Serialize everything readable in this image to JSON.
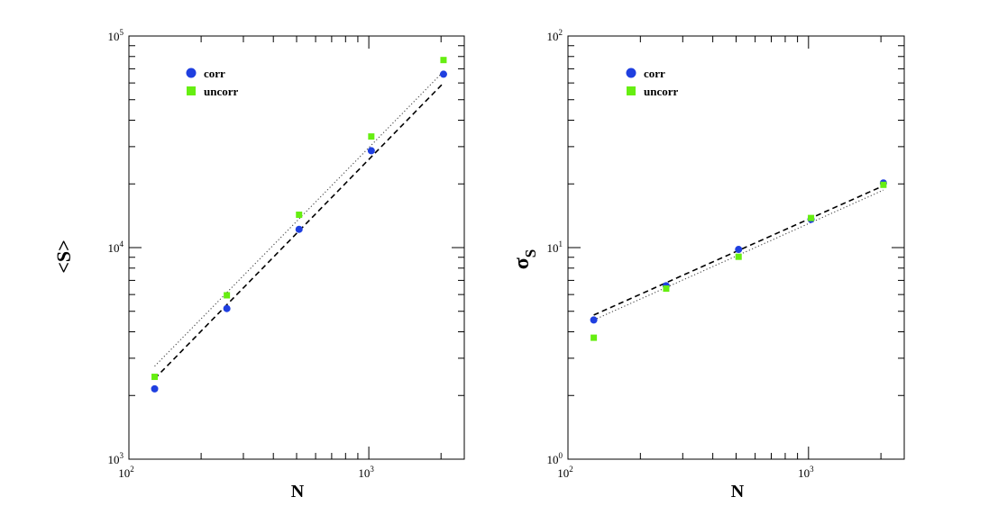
{
  "chart_data": [
    {
      "type": "scatter",
      "xlabel": "N",
      "ylabel": "<S>",
      "xscale": "log",
      "yscale": "log",
      "xlim": [
        100,
        2500
      ],
      "ylim": [
        1000,
        100000
      ],
      "x_tick_labels": [
        {
          "value": 100,
          "base": "10",
          "exp": "2"
        },
        {
          "value": 1000,
          "base": "10",
          "exp": "3"
        }
      ],
      "y_tick_labels": [
        {
          "value": 1000,
          "base": "10",
          "exp": "3"
        },
        {
          "value": 10000,
          "base": "10",
          "exp": "4"
        },
        {
          "value": 100000,
          "base": "10",
          "exp": "5"
        }
      ],
      "legend": {
        "position": "top-left",
        "entries": [
          "corr",
          "uncorr"
        ]
      },
      "series": [
        {
          "name": "corr",
          "marker": "circle",
          "color": "#1f3fe0",
          "x": [
            128,
            256,
            512,
            1024,
            2048
          ],
          "y": [
            2150,
            5150,
            12200,
            28700,
            66000
          ]
        },
        {
          "name": "uncorr",
          "marker": "square",
          "color": "#66ee11",
          "x": [
            128,
            256,
            512,
            1024,
            2048
          ],
          "y": [
            2450,
            5950,
            14300,
            33500,
            77000
          ]
        }
      ],
      "fit_lines": [
        {
          "series": "corr",
          "style": "dashed",
          "x": [
            128,
            2048
          ],
          "y": [
            2400,
            60000
          ]
        },
        {
          "series": "uncorr",
          "style": "dotted",
          "x": [
            128,
            2048
          ],
          "y": [
            2750,
            68000
          ]
        }
      ]
    },
    {
      "type": "scatter",
      "xlabel": "N",
      "ylabel": "σ",
      "ylabel_sub": "S",
      "xscale": "log",
      "yscale": "log",
      "xlim": [
        100,
        2500
      ],
      "ylim": [
        1,
        100
      ],
      "x_tick_labels": [
        {
          "value": 100,
          "base": "10",
          "exp": "2"
        },
        {
          "value": 1000,
          "base": "10",
          "exp": "3"
        }
      ],
      "y_tick_labels": [
        {
          "value": 1,
          "base": "10",
          "exp": "0"
        },
        {
          "value": 10,
          "base": "10",
          "exp": "1"
        },
        {
          "value": 100,
          "base": "10",
          "exp": "2"
        }
      ],
      "legend": {
        "position": "top-left",
        "entries": [
          "corr",
          "uncorr"
        ]
      },
      "series": [
        {
          "name": "corr",
          "marker": "circle",
          "color": "#1f3fe0",
          "x": [
            128,
            256,
            512,
            1024,
            2048
          ],
          "y": [
            4.55,
            6.6,
            9.8,
            13.6,
            20.2
          ]
        },
        {
          "name": "uncorr",
          "marker": "square",
          "color": "#66ee11",
          "x": [
            128,
            256,
            512,
            1024,
            2048
          ],
          "y": [
            3.75,
            6.4,
            9.05,
            13.8,
            19.8
          ]
        }
      ],
      "fit_lines": [
        {
          "series": "corr",
          "style": "dashed",
          "x": [
            128,
            2048
          ],
          "y": [
            4.8,
            19.6
          ]
        },
        {
          "series": "uncorr",
          "style": "dotted",
          "x": [
            128,
            2048
          ],
          "y": [
            4.55,
            18.7
          ]
        }
      ]
    }
  ]
}
